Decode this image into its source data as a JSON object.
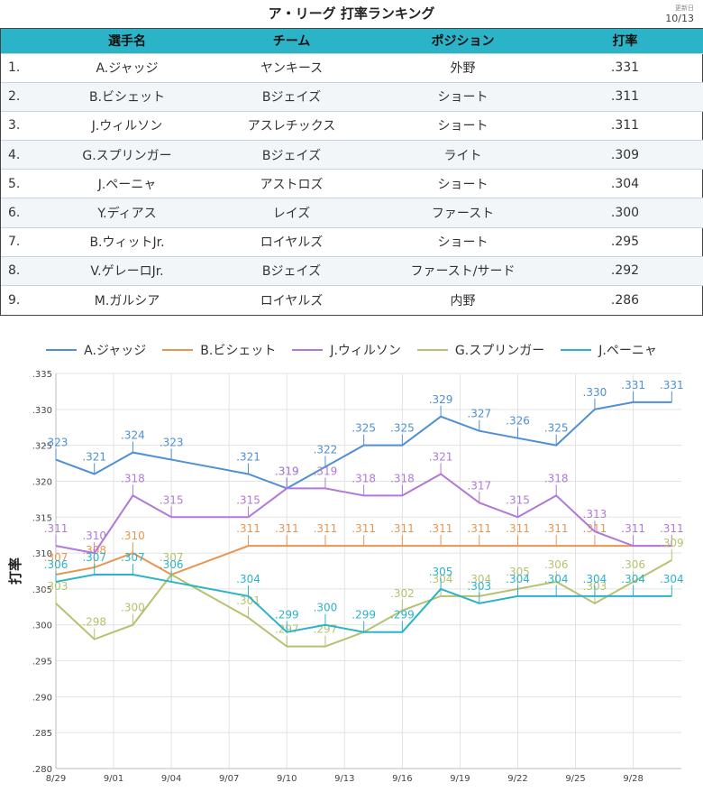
{
  "header": {
    "title": "ア・リーグ 打率ランキング",
    "updated_label": "更新日",
    "updated_date": "10/13"
  },
  "table": {
    "columns": [
      "",
      "選手名",
      "チーム",
      "ポジション",
      "打率"
    ],
    "rows": [
      {
        "rank": "1.",
        "name": "A.ジャッジ",
        "team": "ヤンキース",
        "pos": "外野",
        "avg": ".331"
      },
      {
        "rank": "2.",
        "name": "B.ビシェット",
        "team": "Bジェイズ",
        "pos": "ショート",
        "avg": ".311"
      },
      {
        "rank": "3.",
        "name": "J.ウィルソン",
        "team": "アスレチックス",
        "pos": "ショート",
        "avg": ".311"
      },
      {
        "rank": "4.",
        "name": "G.スプリンガー",
        "team": "Bジェイズ",
        "pos": "ライト",
        "avg": ".309"
      },
      {
        "rank": "5.",
        "name": "J.ペーニャ",
        "team": "アストロズ",
        "pos": "ショート",
        "avg": ".304"
      },
      {
        "rank": "6.",
        "name": "Y.ディアス",
        "team": "レイズ",
        "pos": "ファースト",
        "avg": ".300"
      },
      {
        "rank": "7.",
        "name": "B.ウィットJr.",
        "team": "ロイヤルズ",
        "pos": "ショート",
        "avg": ".295"
      },
      {
        "rank": "8.",
        "name": "V.ゲレーロJr.",
        "team": "Bジェイズ",
        "pos": "ファースト/サード",
        "avg": ".292"
      },
      {
        "rank": "9.",
        "name": "M.ガルシア",
        "team": "ロイヤルズ",
        "pos": "内野",
        "avg": ".286"
      }
    ]
  },
  "chart_data": {
    "type": "line",
    "title": "",
    "xlabel": "",
    "ylabel": "打率",
    "ylim": [
      0.28,
      0.335
    ],
    "yticks": [
      ".335",
      ".330",
      ".325",
      ".320",
      ".315",
      ".310",
      ".305",
      ".300",
      ".295",
      ".290",
      ".285",
      ".280"
    ],
    "ytick_values": [
      0.335,
      0.33,
      0.325,
      0.32,
      0.315,
      0.31,
      0.305,
      0.3,
      0.295,
      0.29,
      0.285,
      0.28
    ],
    "x_tick_labels": [
      "8/29",
      "9/01",
      "9/04",
      "9/07",
      "9/10",
      "9/13",
      "9/16",
      "9/19",
      "9/22",
      "9/25",
      "9/28"
    ],
    "x_tick_days": [
      0,
      3,
      6,
      9,
      12,
      15,
      18,
      21,
      24,
      27,
      30
    ],
    "x_range": [
      0,
      32.5
    ],
    "grid": true,
    "legend_position": "top",
    "series": [
      {
        "name": "A.ジャッジ",
        "color": "#4e8fd6",
        "x": [
          0,
          2,
          4,
          6,
          10,
          12,
          14,
          16,
          18,
          20,
          22,
          24,
          26,
          28,
          30,
          32
        ],
        "values": [
          0.323,
          0.321,
          0.324,
          0.323,
          0.321,
          0.319,
          0.322,
          0.325,
          0.325,
          0.329,
          0.327,
          0.326,
          0.325,
          0.33,
          0.331,
          0.331
        ],
        "labels": [
          ".323",
          ".321",
          ".324",
          ".323",
          ".321",
          ".319",
          ".322",
          ".325",
          ".325",
          ".329",
          ".327",
          ".326",
          ".325",
          ".330",
          ".331",
          ".331"
        ],
        "label_idx": [
          0,
          1,
          2,
          3,
          4,
          5,
          6,
          7,
          8,
          9,
          10,
          11,
          12,
          13,
          14,
          15
        ]
      },
      {
        "name": "B.ビシェット",
        "color": "#e8964f",
        "x": [
          0,
          2,
          4,
          6,
          10,
          12,
          14,
          16,
          18,
          20,
          22,
          24,
          26,
          28,
          30,
          32
        ],
        "values": [
          0.307,
          0.308,
          0.31,
          0.307,
          0.311,
          0.311,
          0.311,
          0.311,
          0.311,
          0.311,
          0.311,
          0.311,
          0.311,
          0.311,
          0.311,
          0.311
        ],
        "labels": [
          ".307",
          ".308",
          ".310",
          "",
          ".311",
          ".311",
          ".311",
          ".311",
          ".311",
          ".311",
          ".311",
          ".311",
          ".311",
          ".311",
          "",
          ""
        ],
        "label_idx": [
          0,
          1,
          2,
          4,
          5,
          6,
          7,
          8,
          9,
          10,
          11,
          12,
          13
        ]
      },
      {
        "name": "J.ウィルソン",
        "color": "#b07ad6",
        "x": [
          0,
          2,
          4,
          6,
          10,
          12,
          14,
          16,
          18,
          20,
          22,
          24,
          26,
          28,
          30,
          32
        ],
        "values": [
          0.311,
          0.31,
          0.318,
          0.315,
          0.315,
          0.319,
          0.319,
          0.318,
          0.318,
          0.321,
          0.317,
          0.315,
          0.318,
          0.313,
          0.311,
          0.311
        ],
        "labels": [
          ".311",
          ".310",
          ".318",
          ".315",
          ".315",
          ".319",
          ".319",
          ".318",
          ".318",
          ".321",
          ".317",
          ".315",
          ".318",
          ".313",
          ".311",
          ".311"
        ],
        "label_idx": [
          0,
          1,
          2,
          3,
          4,
          5,
          6,
          7,
          8,
          9,
          10,
          11,
          12,
          13,
          14,
          15
        ]
      },
      {
        "name": "G.スプリンガー",
        "color": "#b5c270",
        "x": [
          0,
          2,
          4,
          6,
          10,
          12,
          14,
          16,
          18,
          20,
          22,
          24,
          26,
          28,
          30,
          32
        ],
        "values": [
          0.303,
          0.298,
          0.3,
          0.307,
          0.301,
          0.297,
          0.297,
          0.299,
          0.302,
          0.304,
          0.304,
          0.305,
          0.306,
          0.303,
          0.306,
          0.309
        ],
        "labels": [
          ".303",
          ".298",
          ".300",
          ".307",
          ".301",
          ".297",
          ".297",
          "",
          ".302",
          ".304",
          ".304",
          ".305",
          ".306",
          ".303",
          ".306",
          ".309"
        ],
        "label_idx": [
          0,
          1,
          2,
          3,
          4,
          5,
          6,
          8,
          9,
          10,
          11,
          12,
          13,
          14,
          15
        ]
      },
      {
        "name": "J.ペーニャ",
        "color": "#2bb3c8",
        "x": [
          0,
          2,
          4,
          6,
          10,
          12,
          14,
          16,
          18,
          20,
          22,
          24,
          26,
          28,
          30,
          32
        ],
        "values": [
          0.306,
          0.307,
          0.307,
          0.306,
          0.304,
          0.299,
          0.3,
          0.299,
          0.299,
          0.305,
          0.303,
          0.304,
          0.304,
          0.304,
          0.304,
          0.304
        ],
        "labels": [
          ".306",
          ".307",
          ".307",
          ".306",
          ".304",
          ".299",
          ".300",
          ".299",
          ".299",
          ".305",
          ".303",
          ".304",
          ".304",
          ".304",
          ".304",
          ".304"
        ],
        "label_idx": [
          0,
          1,
          2,
          3,
          4,
          5,
          6,
          7,
          8,
          9,
          10,
          11,
          12,
          13,
          14,
          15
        ]
      }
    ]
  }
}
